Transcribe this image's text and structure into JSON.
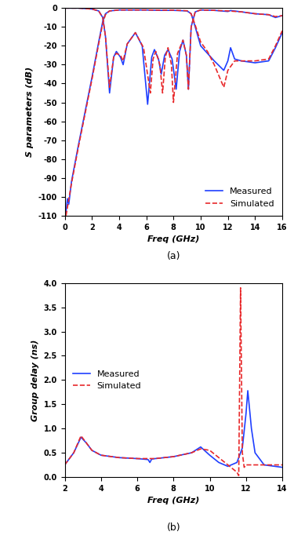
{
  "chart_data": [
    {
      "type": "line",
      "panel_label": "(a)",
      "x_label": "Freq (GHz)",
      "y_label": "S parameters (dB)",
      "xlim": [
        0,
        16
      ],
      "xticks": [
        0,
        2,
        4,
        6,
        8,
        10,
        12,
        14,
        16
      ],
      "ylim": [
        -110,
        0
      ],
      "yticks": [
        0,
        -10,
        -20,
        -30,
        -40,
        -50,
        -60,
        -70,
        -80,
        -90,
        -100,
        -110
      ],
      "legend": "lower right",
      "series": [
        {
          "name": "Measured",
          "color": "#1f3fff",
          "line_style": "solid",
          "x": [
            0.1,
            0.2,
            0.3,
            0.5,
            1.0,
            1.5,
            2.0,
            2.5,
            2.8,
            3.0,
            3.3,
            4.0,
            5.0,
            6.0,
            7.0,
            8.0,
            9.0,
            9.3,
            9.6,
            10.0,
            10.5,
            11.0,
            11.7,
            12.0,
            12.2,
            12.5,
            13.0,
            14.0,
            15.0,
            15.5,
            16.0
          ],
          "values": [
            -108,
            -101,
            -104,
            -92,
            -73,
            -55,
            -37,
            -18,
            -7,
            -3,
            -1.5,
            -1,
            -1,
            -1,
            -1.2,
            -1.2,
            -1.5,
            -3,
            -10,
            -20,
            -24,
            -28,
            -33,
            -28,
            -21,
            -27,
            -28,
            -29,
            -28,
            -21,
            -13
          ]
        },
        {
          "name": "Measured",
          "color": "#1f3fff",
          "line_style": "solid",
          "x": [
            0,
            1,
            2,
            2.5,
            2.8,
            3.0,
            3.3,
            3.6,
            3.8,
            4.1,
            4.3,
            4.6,
            5.2,
            5.7,
            6.1,
            6.4,
            6.6,
            6.9,
            7.1,
            7.35,
            7.6,
            7.9,
            8.2,
            8.45,
            8.7,
            8.95,
            9.1,
            9.3,
            9.6,
            10.0,
            11.0,
            12.0,
            12.2,
            13.0,
            14.0,
            15.0,
            15.5,
            16.0
          ],
          "values": [
            0,
            0,
            -0.5,
            -1.5,
            -5,
            -15,
            -45,
            -26,
            -23,
            -26,
            -30,
            -19,
            -13,
            -20,
            -51,
            -26,
            -22,
            -27,
            -35,
            -25,
            -22,
            -27,
            -43,
            -23,
            -17,
            -25,
            -43,
            -10,
            -2,
            -1,
            -1.2,
            -1.8,
            -1.3,
            -2,
            -3,
            -3.5,
            -5,
            -4
          ]
        },
        {
          "name": "Simulated",
          "color": "#e8292b",
          "line_style": "dashed",
          "x": [
            0.1,
            0.5,
            1.0,
            1.5,
            2.0,
            2.5,
            2.8,
            3.0,
            3.3,
            4.0,
            5.0,
            6.0,
            7.0,
            8.0,
            9.0,
            9.3,
            9.6,
            10.0,
            10.5,
            11.0,
            11.7,
            12.0,
            12.5,
            13.0,
            14.0,
            15.0,
            15.5,
            16.0
          ],
          "values": [
            -110,
            -93,
            -74,
            -56,
            -38,
            -19,
            -8,
            -3.5,
            -1.5,
            -1,
            -1,
            -1,
            -1.1,
            -1.1,
            -1.4,
            -3,
            -9,
            -18,
            -23,
            -30,
            -42,
            -33,
            -28,
            -28,
            -28,
            -27,
            -20,
            -12
          ]
        },
        {
          "name": "Simulated",
          "color": "#e8292b",
          "line_style": "dashed",
          "x": [
            0,
            1,
            2,
            2.5,
            2.8,
            3.0,
            3.3,
            3.6,
            3.8,
            4.1,
            4.3,
            4.6,
            5.2,
            5.8,
            6.3,
            6.5,
            6.7,
            7.0,
            7.2,
            7.4,
            7.6,
            7.85,
            8.0,
            8.3,
            8.7,
            8.95,
            9.1,
            9.3,
            9.6,
            10.0,
            11.0,
            12.0,
            13.0,
            14.0,
            15.0,
            15.5,
            16.0
          ],
          "values": [
            0,
            0,
            -0.5,
            -1.5,
            -5,
            -15,
            -42,
            -26,
            -24,
            -25,
            -28,
            -19,
            -13,
            -21,
            -45,
            -27,
            -23,
            -30,
            -45,
            -26,
            -21,
            -30,
            -50,
            -24,
            -17,
            -25,
            -43,
            -10,
            -2,
            -1,
            -1.2,
            -1.5,
            -2,
            -3,
            -3.5,
            -4.5,
            -4
          ]
        }
      ]
    },
    {
      "type": "line",
      "panel_label": "(b)",
      "x_label": "Freq (GHz)",
      "y_label": "Group delay (ns)",
      "xlim": [
        2,
        14
      ],
      "xticks": [
        2,
        4,
        6,
        8,
        10,
        12,
        14
      ],
      "ylim": [
        0.0,
        4.0
      ],
      "yticks": [
        0.0,
        0.5,
        1.0,
        1.5,
        2.0,
        2.5,
        3.0,
        3.5,
        4.0
      ],
      "legend": "center left",
      "series": [
        {
          "name": "Measured",
          "color": "#1f3fff",
          "line_style": "solid",
          "x": [
            2.0,
            2.5,
            2.9,
            3.2,
            3.5,
            4.0,
            5.0,
            6.0,
            6.6,
            6.7,
            6.8,
            7.0,
            8.0,
            9.0,
            9.5,
            10.0,
            10.5,
            11.0,
            11.5,
            11.8,
            12.0,
            12.1,
            12.3,
            12.5,
            13.0,
            14.0
          ],
          "values": [
            0.25,
            0.5,
            0.82,
            0.7,
            0.55,
            0.45,
            0.4,
            0.38,
            0.36,
            0.3,
            0.37,
            0.38,
            0.42,
            0.5,
            0.62,
            0.45,
            0.3,
            0.22,
            0.3,
            0.6,
            1.3,
            1.78,
            1.0,
            0.5,
            0.25,
            0.2
          ]
        },
        {
          "name": "Simulated",
          "color": "#e8292b",
          "line_style": "dashed",
          "x": [
            2.0,
            2.5,
            2.9,
            3.2,
            3.5,
            4.0,
            5.0,
            6.0,
            7.0,
            8.0,
            9.0,
            9.5,
            10.0,
            10.5,
            11.0,
            11.5,
            11.6,
            11.7,
            11.8,
            11.9,
            12.0,
            13.0,
            14.0
          ],
          "values": [
            0.25,
            0.5,
            0.85,
            0.7,
            0.55,
            0.45,
            0.4,
            0.38,
            0.38,
            0.42,
            0.5,
            0.58,
            0.55,
            0.4,
            0.25,
            0.1,
            0.03,
            3.9,
            0.5,
            0.2,
            0.25,
            0.25,
            0.25
          ]
        }
      ]
    }
  ]
}
